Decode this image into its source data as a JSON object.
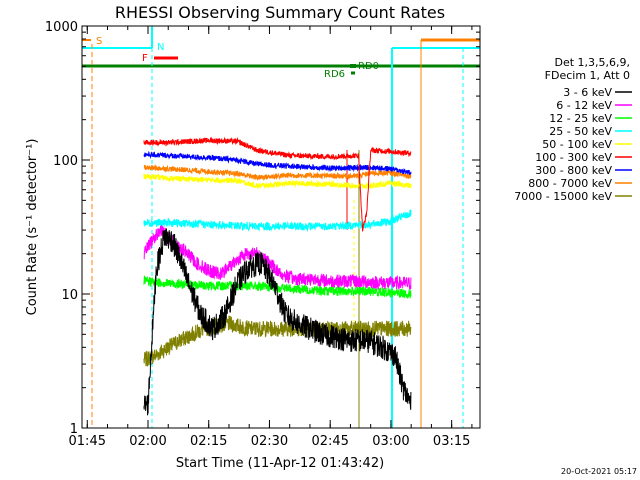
{
  "chart_data": {
    "type": "line",
    "title": "RHESSI Observing Summary Count Rates",
    "xlabel": "Start Time (11-Apr-12 01:43:42)",
    "ylabel": "Count Rate (s⁻¹ detector⁻¹)",
    "y_scale": "log",
    "xlim": [
      "01:43:42",
      "03:22:00"
    ],
    "ylim": [
      1,
      1000
    ],
    "x_ticks": [
      "01:45",
      "02:00",
      "02:15",
      "02:30",
      "02:45",
      "03:00",
      "03:15"
    ],
    "y_ticks": [
      "1",
      "10",
      "100",
      "1000"
    ],
    "grid": false,
    "legend_placement": "right",
    "legend_header": [
      "Det 1,3,5,6,9,",
      "FDecim 1, Att 0"
    ],
    "series": [
      {
        "name": "3 - 6 keV",
        "color": "#000000",
        "x": [
          "01:59",
          "02:00",
          "02:02",
          "02:04",
          "02:06",
          "02:08",
          "02:10",
          "02:13",
          "02:16",
          "02:19",
          "02:22",
          "02:25",
          "02:28",
          "02:31",
          "02:34",
          "02:37",
          "02:40",
          "02:43",
          "02:46",
          "02:50",
          "02:54",
          "02:58",
          "03:01",
          "03:03",
          "03:05"
        ],
        "values": [
          1.5,
          1.5,
          15,
          27,
          25,
          18,
          12,
          7,
          5.5,
          7,
          12,
          16,
          17,
          12,
          7,
          6,
          5.5,
          5,
          4.8,
          4.5,
          4.5,
          4,
          3.5,
          2,
          1.5
        ]
      },
      {
        "name": "6 - 12 keV",
        "color": "#ff00ff",
        "x": [
          "01:59",
          "02:01",
          "02:03",
          "02:06",
          "02:09",
          "02:12",
          "02:15",
          "02:18",
          "02:21",
          "02:24",
          "02:27",
          "02:30",
          "02:33",
          "02:36",
          "02:40",
          "02:45",
          "02:50",
          "02:55",
          "03:00",
          "03:05"
        ],
        "values": [
          20,
          25,
          30,
          25,
          21,
          17,
          15,
          14,
          17,
          20,
          20,
          17,
          14,
          13,
          13,
          12.5,
          12.5,
          12.3,
          12.1,
          12
        ]
      },
      {
        "name": "12 - 25 keV",
        "color": "#00ff00",
        "x": [
          "01:59",
          "02:05",
          "02:15",
          "02:25",
          "02:35",
          "02:45",
          "02:55",
          "03:05"
        ],
        "values": [
          12.5,
          12,
          11.5,
          11.5,
          11,
          10.5,
          10.5,
          10
        ]
      },
      {
        "name": "25 - 50 keV",
        "color": "#00ffff",
        "x": [
          "01:59",
          "02:05",
          "02:15",
          "02:25",
          "02:35",
          "02:45",
          "02:55",
          "03:00",
          "03:05"
        ],
        "values": [
          34,
          34,
          33,
          32,
          32,
          32,
          33,
          35,
          40
        ]
      },
      {
        "name": "50 - 100 keV",
        "color": "#ffff00",
        "x": [
          "01:59",
          "02:05",
          "02:15",
          "02:22",
          "02:27",
          "02:35",
          "02:45",
          "02:52",
          "02:55",
          "03:00",
          "03:05"
        ],
        "values": [
          76,
          73,
          71,
          70,
          64,
          67,
          66,
          64,
          64,
          67,
          64
        ]
      },
      {
        "name": "100 - 300 keV",
        "color": "#ff0000",
        "x": [
          "01:59",
          "02:05",
          "02:15",
          "02:22",
          "02:27",
          "02:35",
          "02:45",
          "02:52",
          "02:53",
          "02:54",
          "02:55",
          "03:00",
          "03:05"
        ],
        "values": [
          135,
          135,
          140,
          138,
          118,
          108,
          106,
          108,
          30,
          40,
          118,
          116,
          112
        ]
      },
      {
        "name": "300 - 800 keV",
        "color": "#0000ff",
        "x": [
          "01:59",
          "02:05",
          "02:15",
          "02:22",
          "02:27",
          "02:35",
          "02:45",
          "02:55",
          "03:00",
          "03:05"
        ],
        "values": [
          110,
          108,
          104,
          100,
          93,
          90,
          87,
          88,
          86,
          80
        ]
      },
      {
        "name": "800 - 7000 keV",
        "color": "#ff8000",
        "x": [
          "01:59",
          "02:05",
          "02:15",
          "02:22",
          "02:27",
          "02:35",
          "02:45",
          "02:52",
          "02:55",
          "03:00",
          "03:05"
        ],
        "values": [
          88,
          86,
          82,
          79,
          74,
          77,
          76,
          76,
          80,
          80,
          76
        ]
      },
      {
        "name": "7000 - 15000 keV",
        "color": "#808000",
        "x": [
          "01:59",
          "02:02",
          "02:05",
          "02:08",
          "02:11",
          "02:14",
          "02:17",
          "02:20",
          "02:25",
          "02:35",
          "02:45",
          "02:55",
          "03:00",
          "03:05"
        ],
        "values": [
          3.2,
          3.5,
          4,
          4.5,
          5,
          5.5,
          5.8,
          6,
          5.5,
          5.5,
          5.5,
          5.5,
          5.5,
          5.5
        ]
      }
    ],
    "annotations": [
      {
        "text": "S",
        "color": "#ff8000"
      },
      {
        "text": "N",
        "color": "#00ffff"
      },
      {
        "text": "F",
        "color": "#ff0000"
      },
      {
        "text": "RD0",
        "color": "#008000"
      },
      {
        "text": "RD6",
        "color": "#008000"
      }
    ],
    "footer_timestamp": "20-Oct-2021 05:17"
  }
}
